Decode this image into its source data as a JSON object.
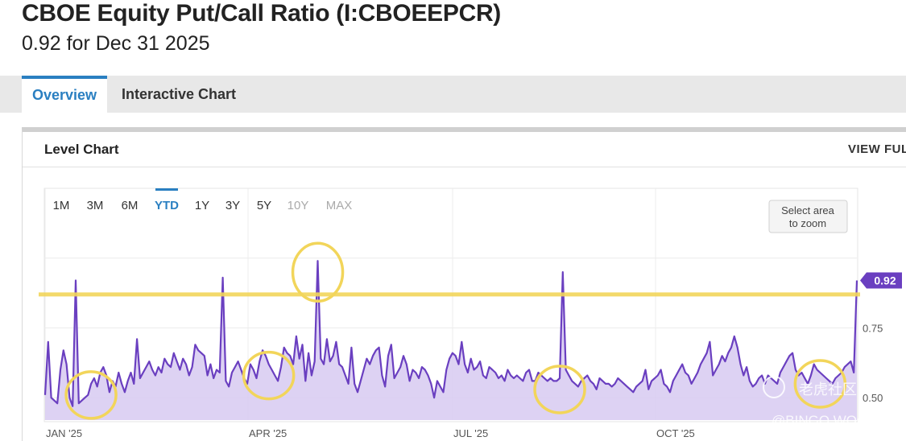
{
  "header": {
    "title": "CBOE Equity Put/Call Ratio (I:CBOEEPCR)",
    "subtitle": "0.92 for Dec 31 2025"
  },
  "tabs": [
    {
      "label": "Overview",
      "active": true
    },
    {
      "label": "Interactive Chart",
      "active": false
    }
  ],
  "card": {
    "title": "Level Chart",
    "view_full": "VIEW FULL"
  },
  "range_buttons": [
    {
      "label": "1M",
      "state": "normal"
    },
    {
      "label": "3M",
      "state": "normal"
    },
    {
      "label": "6M",
      "state": "normal"
    },
    {
      "label": "YTD",
      "state": "active"
    },
    {
      "label": "1Y",
      "state": "normal"
    },
    {
      "label": "3Y",
      "state": "normal"
    },
    {
      "label": "5Y",
      "state": "normal"
    },
    {
      "label": "10Y",
      "state": "disabled"
    },
    {
      "label": "MAX",
      "state": "disabled"
    }
  ],
  "zoom_hint": {
    "line1": "Select area",
    "line2": "to zoom"
  },
  "watermark": {
    "line1": "老虎社区",
    "line2": "@BINGO WOOD"
  },
  "colors": {
    "series": "#6a3fc0",
    "fill": "#d9cdf2",
    "highlight": "#f2d55a",
    "accent": "#2a7fc1"
  },
  "chart_data": {
    "type": "area",
    "title": "",
    "xlabel": "",
    "ylabel": "",
    "x_tick_labels": [
      "JAN '25",
      "APR '25",
      "JUL '25",
      "OCT '25"
    ],
    "y_tick_labels": [
      "0.75",
      "0.50"
    ],
    "y_ticks": [
      0.75,
      0.5
    ],
    "ylim": [
      0.42,
      1.25
    ],
    "grid": true,
    "last_value": {
      "label": "0.92",
      "value": 0.92
    },
    "reference_line": 0.87,
    "highlighted_points": [
      15,
      73,
      89,
      168,
      253
    ],
    "series": [
      {
        "values": [
          0.51,
          0.7,
          0.5,
          0.49,
          0.48,
          0.6,
          0.67,
          0.62,
          0.5,
          0.47,
          0.92,
          0.48,
          0.49,
          0.5,
          0.51,
          0.55,
          0.57,
          0.54,
          0.59,
          0.61,
          0.58,
          0.52,
          0.56,
          0.54,
          0.59,
          0.55,
          0.52,
          0.56,
          0.59,
          0.55,
          0.71,
          0.57,
          0.59,
          0.61,
          0.63,
          0.6,
          0.58,
          0.61,
          0.59,
          0.64,
          0.62,
          0.61,
          0.66,
          0.63,
          0.6,
          0.64,
          0.62,
          0.58,
          0.61,
          0.69,
          0.67,
          0.66,
          0.65,
          0.58,
          0.62,
          0.57,
          0.6,
          0.59,
          0.93,
          0.56,
          0.54,
          0.59,
          0.61,
          0.63,
          0.6,
          0.57,
          0.55,
          0.62,
          0.6,
          0.57,
          0.63,
          0.67,
          0.65,
          0.62,
          0.6,
          0.58,
          0.56,
          0.61,
          0.68,
          0.66,
          0.65,
          0.62,
          0.72,
          0.64,
          0.69,
          0.56,
          0.66,
          0.58,
          0.63,
          0.99,
          0.64,
          0.62,
          0.71,
          0.63,
          0.65,
          0.7,
          0.62,
          0.61,
          0.58,
          0.55,
          0.68,
          0.55,
          0.52,
          0.56,
          0.6,
          0.64,
          0.62,
          0.65,
          0.67,
          0.68,
          0.58,
          0.54,
          0.65,
          0.69,
          0.57,
          0.59,
          0.61,
          0.65,
          0.62,
          0.56,
          0.6,
          0.59,
          0.57,
          0.61,
          0.6,
          0.58,
          0.55,
          0.5,
          0.56,
          0.54,
          0.52,
          0.6,
          0.64,
          0.66,
          0.65,
          0.62,
          0.7,
          0.62,
          0.59,
          0.64,
          0.6,
          0.61,
          0.63,
          0.58,
          0.57,
          0.61,
          0.6,
          0.59,
          0.57,
          0.58,
          0.56,
          0.6,
          0.58,
          0.57,
          0.58,
          0.57,
          0.56,
          0.59,
          0.6,
          0.56,
          0.56,
          0.59,
          0.58,
          0.57,
          0.56,
          0.57,
          0.56,
          0.56,
          0.57,
          0.95,
          0.6,
          0.58,
          0.56,
          0.55,
          0.54,
          0.56,
          0.57,
          0.58,
          0.56,
          0.55,
          0.53,
          0.57,
          0.56,
          0.55,
          0.55,
          0.54,
          0.55,
          0.57,
          0.56,
          0.55,
          0.54,
          0.53,
          0.52,
          0.54,
          0.55,
          0.56,
          0.6,
          0.53,
          0.56,
          0.57,
          0.58,
          0.6,
          0.55,
          0.54,
          0.52,
          0.56,
          0.58,
          0.6,
          0.62,
          0.59,
          0.58,
          0.55,
          0.57,
          0.59,
          0.62,
          0.64,
          0.66,
          0.7,
          0.58,
          0.6,
          0.62,
          0.65,
          0.63,
          0.66,
          0.68,
          0.72,
          0.68,
          0.62,
          0.58,
          0.61,
          0.56,
          0.54,
          0.55,
          0.57,
          0.58,
          0.55,
          0.58,
          0.57,
          0.56,
          0.55,
          0.59,
          0.61,
          0.63,
          0.65,
          0.66,
          0.6,
          0.58,
          0.59,
          0.57,
          0.55,
          0.58,
          0.62,
          0.6,
          0.59,
          0.58,
          0.57,
          0.56,
          0.55,
          0.57,
          0.58,
          0.59,
          0.61,
          0.62,
          0.63,
          0.59,
          0.92
        ]
      }
    ]
  }
}
